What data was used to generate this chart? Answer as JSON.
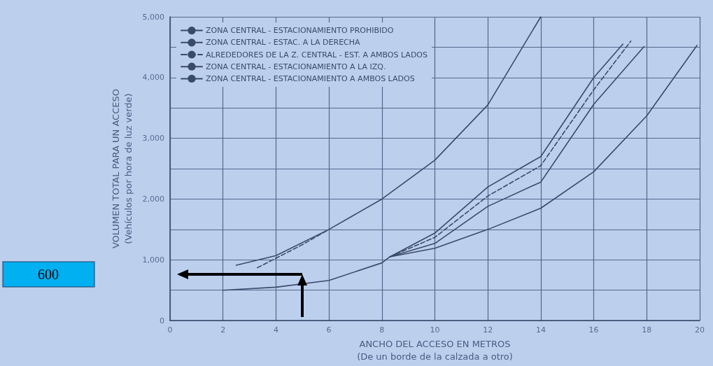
{
  "chart_data": {
    "type": "line",
    "xlabel": "ANCHO DEL ACCESO EN METROS\n(De un borde de la calzada a otro)",
    "ylabel": "VOLUMEN TOTAL PARA UN ACCESO\n(Vehículos por hora de luz verde)",
    "xlim": [
      0,
      20
    ],
    "xticks": [
      0,
      2,
      4,
      6,
      8,
      10,
      12,
      14,
      16,
      18,
      20
    ],
    "ylim": [
      0,
      5000
    ],
    "yticks": [
      0,
      {
        "value": 1000,
        "label": "1,000"
      },
      {
        "value": 2000,
        "label": "2,000"
      },
      {
        "value": 3000,
        "label": "3,000"
      },
      {
        "value": 4000,
        "label": "4,000"
      },
      {
        "value": 5000,
        "label": "5,000"
      }
    ],
    "grid": true,
    "marker": "none",
    "legend": "top left",
    "series": [
      {
        "name": "ZONA CENTRAL - ESTACIONAMIENTO PROHIBIDO",
        "color": "#3a4a6b",
        "x": [
          2.5,
          4,
          6,
          8,
          10,
          12,
          14
        ],
        "values": [
          910,
          1070,
          1500,
          2000,
          2640,
          3550,
          5000
        ]
      },
      {
        "color": "#3a4a6b",
        "line_style": "dashed",
        "x": [
          3.3,
          5,
          6
        ],
        "values": [
          870,
          1250,
          1500
        ]
      },
      {
        "name": "ZONA CENTRAL - ESTAC. A LA DERECHA",
        "color": "#3a4a6b",
        "x": [
          8.3,
          10,
          12,
          14,
          16,
          17.1
        ],
        "values": [
          1050,
          1440,
          2200,
          2700,
          4000,
          4550
        ]
      },
      {
        "name": "ALREDEDORES DE LA Z. CENTRAL - EST. A AMBOS LADOS",
        "color": "#3a4a6b",
        "line_style": "dashed",
        "x": [
          8.3,
          10,
          12,
          14,
          16,
          17.4
        ],
        "values": [
          1050,
          1370,
          2050,
          2550,
          3800,
          4600
        ]
      },
      {
        "name": "ZONA CENTRAL - ESTACIONAMIENTO A LA IZQ.",
        "color": "#3a4a6b",
        "x": [
          8.3,
          10,
          12,
          14,
          16,
          17.9
        ],
        "values": [
          1050,
          1270,
          1880,
          2280,
          3560,
          4510
        ]
      },
      {
        "name": "ZONA CENTRAL - ESTACIONAMIENTO A AMBOS LADOS",
        "color": "#3a4a6b",
        "x": [
          2,
          4,
          6,
          8,
          8.3,
          10,
          12,
          14,
          16,
          18,
          19.9
        ],
        "values": [
          500,
          550,
          660,
          950,
          1050,
          1190,
          1500,
          1850,
          2450,
          3370,
          4530
        ]
      }
    ],
    "annotations": [
      "600"
    ]
  }
}
